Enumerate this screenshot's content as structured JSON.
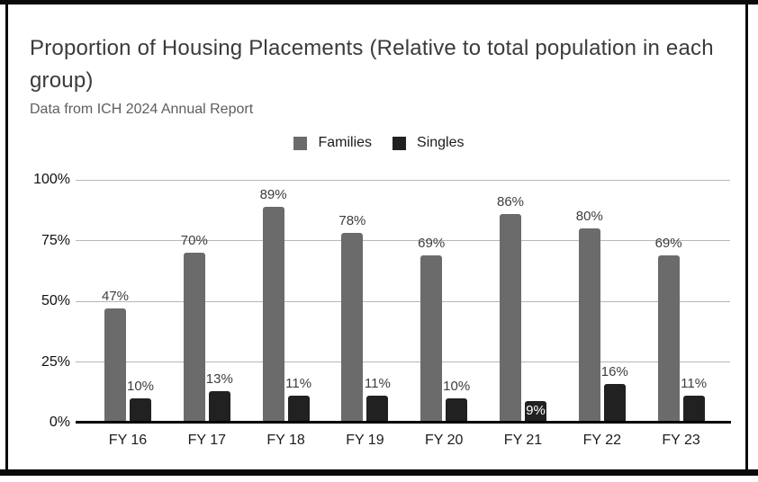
{
  "chart_data": {
    "type": "bar",
    "title": "Proportion of Housing Placements (Relative to total population in each group)",
    "subtitle": "Data from ICH 2024 Annual Report",
    "categories": [
      "FY 16",
      "FY 17",
      "FY 18",
      "FY 19",
      "FY 20",
      "FY 21",
      "FY 22",
      "FY 23"
    ],
    "series": [
      {
        "name": "Families",
        "color": "#6b6b6b",
        "values": [
          47,
          70,
          89,
          78,
          69,
          86,
          80,
          69
        ]
      },
      {
        "name": "Singles",
        "color": "#212121",
        "values": [
          10,
          13,
          11,
          11,
          10,
          9,
          16,
          11
        ],
        "label_inside": [
          false,
          false,
          false,
          false,
          false,
          true,
          false,
          false
        ]
      }
    ],
    "value_suffix": "%",
    "y_ticks": [
      "100%",
      "75%",
      "50%",
      "25%",
      "0%"
    ],
    "ylim": [
      0,
      100
    ],
    "grid": true,
    "legend_position": "top-center"
  },
  "colors": {
    "frame_border": "#0a0a0a",
    "gridline": "#b7b7b7",
    "axis_line": "#000000",
    "title_text": "#3b3b3b",
    "subtitle_text": "#5e5e5e",
    "background": "#ffffff"
  }
}
